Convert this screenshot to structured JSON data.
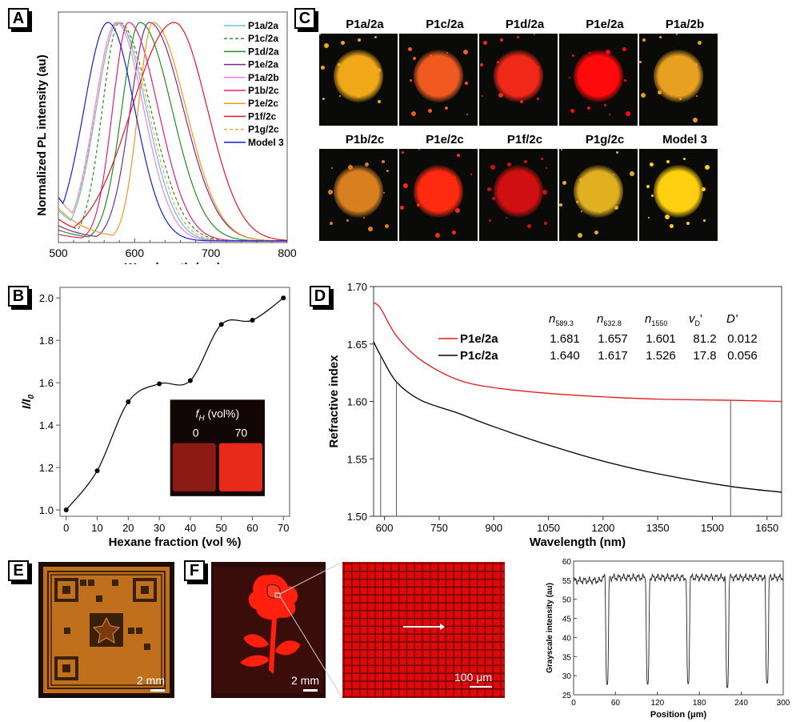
{
  "panels": {
    "A": "A",
    "B": "B",
    "C": "C",
    "D": "D",
    "E": "E",
    "F": "F"
  },
  "chart_data": [
    {
      "id": "A",
      "type": "line",
      "title": "",
      "xlabel": "Wavelength (nm)",
      "ylabel": "Normalized PL intensity (au)",
      "xlim": [
        500,
        800
      ],
      "xticks": [
        500,
        600,
        700,
        800
      ],
      "legend_position": "top-right",
      "series": [
        {
          "name": "P1a/2a",
          "peak_nm": 578,
          "color": "#5bc0eb",
          "dash": false,
          "width_l": 38,
          "width_r": 50,
          "base": 0.14
        },
        {
          "name": "P1c/2a",
          "peak_nm": 580,
          "color": "#2e8b2e",
          "dash": true,
          "width_l": 30,
          "width_r": 55,
          "base": 0.1
        },
        {
          "name": "P1d/2a",
          "peak_nm": 607,
          "color": "#1f8f1f",
          "dash": false,
          "width_l": 32,
          "width_r": 56,
          "base": 0.05
        },
        {
          "name": "P1e/2a",
          "peak_nm": 619,
          "color": "#7b2d8e",
          "dash": false,
          "width_l": 33,
          "width_r": 60,
          "base": 0.07
        },
        {
          "name": "P1a/2b",
          "peak_nm": 576,
          "color": "#ee82ee",
          "dash": false,
          "width_l": 38,
          "width_r": 48,
          "base": 0.2
        },
        {
          "name": "P1b/2c",
          "peak_nm": 592,
          "color": "#e0207a",
          "dash": false,
          "width_l": 28,
          "width_r": 52,
          "base": 0.03
        },
        {
          "name": "P1e/2c",
          "peak_nm": 624,
          "color": "#f7941d",
          "dash": false,
          "width_l": 26,
          "width_r": 58,
          "base": 0.15
        },
        {
          "name": "P1f/2c",
          "peak_nm": 652,
          "color": "#e41a1c",
          "dash": false,
          "width_l": 75,
          "width_r": 58,
          "base": 0.1
        },
        {
          "name": "P1g/2c",
          "peak_nm": 579,
          "color": "#f7a040",
          "dash": true,
          "width_l": 40,
          "width_r": 52,
          "base": 0.2
        },
        {
          "name": "Model 3",
          "peak_nm": 565,
          "color": "#1a1adc",
          "dash": false,
          "width_l": 42,
          "width_r": 47,
          "base": 0.2
        }
      ]
    },
    {
      "id": "B",
      "type": "scatter",
      "xlabel": "Hexane fraction (vol %)",
      "ylabel": "I/I0",
      "xlim": [
        -2,
        72
      ],
      "ylim": [
        0.97,
        2.05
      ],
      "xticks": [
        0,
        10,
        20,
        30,
        40,
        50,
        60,
        70
      ],
      "yticks": [
        1.0,
        1.2,
        1.4,
        1.6,
        1.8,
        2.0
      ],
      "x": [
        0,
        10,
        20,
        30,
        40,
        50,
        60,
        70
      ],
      "y": [
        1.0,
        1.185,
        1.51,
        1.595,
        1.61,
        1.875,
        1.895,
        2.0
      ],
      "fit_line": true,
      "inset": {
        "title": "f_H (vol%)",
        "labels": [
          "0",
          "70"
        ]
      }
    },
    {
      "id": "D",
      "type": "line",
      "xlabel": "Wavelength (nm)",
      "ylabel": "Refractive index",
      "xlim": [
        570,
        1690
      ],
      "ylim": [
        1.5,
        1.7
      ],
      "xticks": [
        600,
        750,
        900,
        1050,
        1200,
        1350,
        1500,
        1650
      ],
      "yticks": [
        1.5,
        1.55,
        1.6,
        1.65,
        1.7
      ],
      "vlines": [
        589.3,
        632.8,
        1550
      ],
      "series": [
        {
          "name": "P1e/2a",
          "color": "#e41a1c",
          "points": [
            [
              570,
              1.686
            ],
            [
              589.3,
              1.681
            ],
            [
              632.8,
              1.657
            ],
            [
              700,
              1.636
            ],
            [
              800,
              1.619
            ],
            [
              900,
              1.612
            ],
            [
              1050,
              1.607
            ],
            [
              1200,
              1.604
            ],
            [
              1350,
              1.602
            ],
            [
              1550,
              1.601
            ],
            [
              1690,
              1.6
            ]
          ]
        },
        {
          "name": "P1c/2a",
          "color": "#000000",
          "points": [
            [
              570,
              1.652
            ],
            [
              589.3,
              1.64
            ],
            [
              632.8,
              1.617
            ],
            [
              700,
              1.601
            ],
            [
              800,
              1.59
            ],
            [
              900,
              1.578
            ],
            [
              1050,
              1.562
            ],
            [
              1200,
              1.548
            ],
            [
              1350,
              1.537
            ],
            [
              1550,
              1.526
            ],
            [
              1690,
              1.521
            ]
          ]
        }
      ],
      "table": {
        "headers": [
          "n589.3",
          "n632.8",
          "n1550",
          "vD'",
          "D'"
        ],
        "header_main": [
          "n",
          "n",
          "n",
          "v",
          "D'"
        ],
        "header_sub": [
          "589.3",
          "632.8",
          "1550",
          "D",
          ""
        ],
        "header_suffix": [
          "",
          "",
          "",
          "'",
          ""
        ],
        "rows": [
          {
            "name": "P1e/2a",
            "values": [
              "1.681",
              "1.657",
              "1.601",
              "81.2",
              "0.012"
            ],
            "color": "#e41a1c"
          },
          {
            "name": "P1c/2a",
            "values": [
              "1.640",
              "1.617",
              "1.526",
              "17.8",
              "0.056"
            ],
            "color": "#000000"
          }
        ]
      }
    },
    {
      "id": "F-profile",
      "type": "line",
      "xlabel": "Position (μm)",
      "ylabel": "Grayscale intensity (au)",
      "xlim": [
        0,
        300
      ],
      "ylim": [
        25,
        60
      ],
      "xticks": [
        0,
        60,
        120,
        180,
        240,
        300
      ],
      "yticks": [
        25,
        30,
        35,
        40,
        45,
        50,
        55,
        60
      ],
      "baseline": 55.7,
      "dips": [
        {
          "x": 48,
          "min": 27.7
        },
        {
          "x": 106,
          "min": 27.8
        },
        {
          "x": 164,
          "min": 27.9
        },
        {
          "x": 220,
          "min": 26.9
        },
        {
          "x": 277,
          "min": 28.0
        }
      ]
    }
  ],
  "photos_C": [
    {
      "title": "P1a/2a",
      "color": "#f0a818"
    },
    {
      "title": "P1c/2a",
      "color": "#f05a20"
    },
    {
      "title": "P1d/2a",
      "color": "#f02818"
    },
    {
      "title": "P1e/2a",
      "color": "#ff0a0a"
    },
    {
      "title": "P1a/2b",
      "color": "#e8a020"
    },
    {
      "title": "P1b/2c",
      "color": "#d88020"
    },
    {
      "title": "P1e/2c",
      "color": "#ff2a10"
    },
    {
      "title": "P1f/2c",
      "color": "#d01010"
    },
    {
      "title": "P1g/2c",
      "color": "#e0b020"
    },
    {
      "title": "Model 3",
      "color": "#ffd010"
    }
  ],
  "E": {
    "scale_bar": "2 mm"
  },
  "F": {
    "scale_bar_rose": "2 mm",
    "scale_bar_grid": "100 μm"
  }
}
